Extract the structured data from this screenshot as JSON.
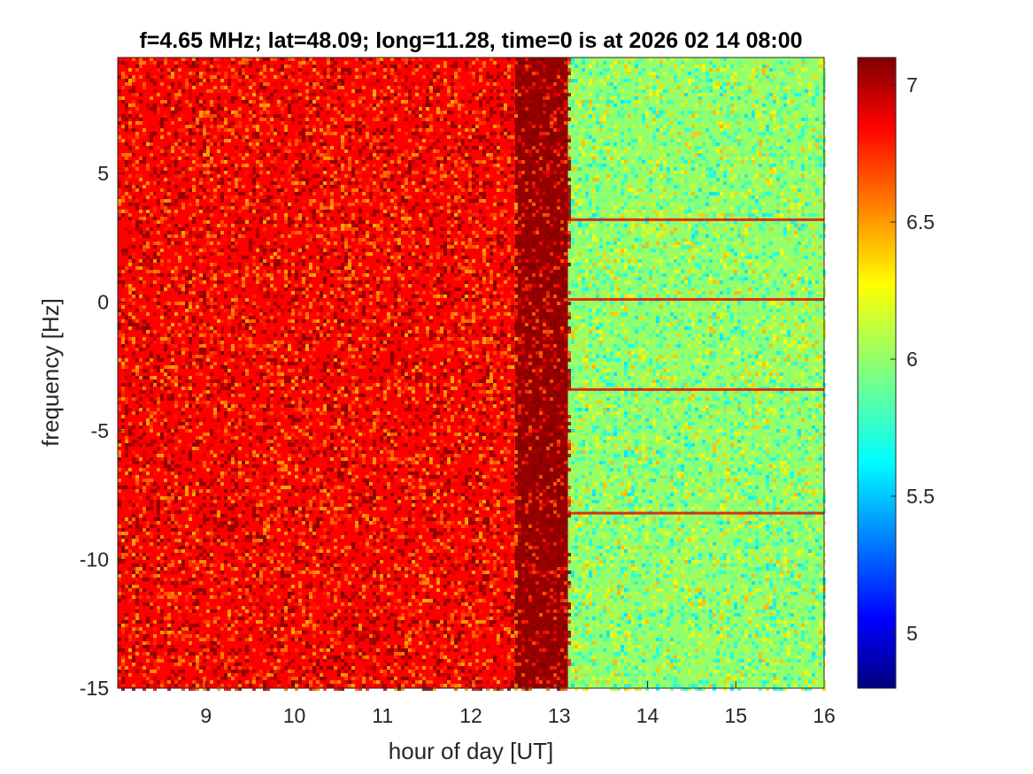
{
  "chart_data": {
    "type": "heatmap",
    "title": "f=4.65 MHz;  lat=48.09; long=11.28, time=0 is at 2026 02 14 08:00",
    "xlabel": "hour of day [UT]",
    "ylabel": "frequency [Hz]",
    "xlim": [
      8,
      16
    ],
    "ylim": [
      -15,
      9.5
    ],
    "xticks": [
      9,
      10,
      11,
      12,
      13,
      14,
      15,
      16
    ],
    "yticks": [
      -15,
      -10,
      -5,
      0,
      5
    ],
    "colorbar": {
      "clim": [
        4.8,
        7.1
      ],
      "ticks": [
        5,
        5.5,
        6,
        6.5,
        7
      ],
      "colormap": "jet"
    },
    "regions": [
      {
        "x_range": [
          8,
          12.5
        ],
        "value": 6.85
      },
      {
        "x_range": [
          12.5,
          13.1
        ],
        "value": 7.05
      },
      {
        "x_range": [
          13.1,
          16
        ],
        "value": 6.0
      }
    ],
    "horizontal_traces_hz": [
      3.2,
      0.1,
      -3.4,
      -8.2
    ],
    "grid": false
  }
}
